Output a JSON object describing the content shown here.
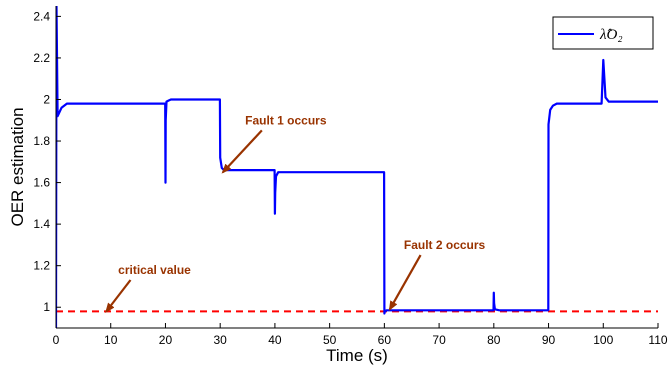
{
  "chart_data": {
    "type": "line",
    "xlabel": "Time (s)",
    "ylabel": "OER estimation",
    "xlim": [
      0,
      110
    ],
    "ylim": [
      0.9,
      2.45
    ],
    "xticks": [
      0,
      10,
      20,
      30,
      40,
      50,
      60,
      70,
      80,
      90,
      100,
      110
    ],
    "yticks": [
      1,
      1.2,
      1.4,
      1.6,
      1.8,
      2,
      2.2,
      2.4
    ],
    "xtick_labels": [
      "0",
      "10",
      "20",
      "30",
      "40",
      "50",
      "60",
      "70",
      "80",
      "90",
      "100",
      "110"
    ],
    "ytick_labels": [
      "1",
      "1.2",
      "1.4",
      "1.6",
      "1.8",
      "2",
      "2.2",
      "2.4"
    ],
    "grid": false,
    "legend_position": "top-right",
    "series": [
      {
        "name": "λ̂_O₂",
        "color": "#0000ff",
        "style": "solid",
        "x": [
          0,
          0.1,
          0.3,
          1,
          2,
          19.95,
          20.0,
          20.05,
          20.2,
          20.6,
          21,
          29.95,
          30.0,
          30.3,
          30.7,
          31,
          39.95,
          40.0,
          40.05,
          40.2,
          40.6,
          41,
          59.95,
          60.0,
          60.1,
          60.4,
          61,
          79.95,
          80.0,
          80.05,
          80.2,
          81,
          89.95,
          90.0,
          90.3,
          90.8,
          91.5,
          99.7,
          100.0,
          100.4,
          101,
          110
        ],
        "y": [
          0.88,
          2.45,
          1.92,
          1.96,
          1.98,
          1.98,
          1.6,
          1.9,
          1.99,
          1.995,
          2.0,
          2.0,
          1.72,
          1.67,
          1.66,
          1.66,
          1.66,
          1.45,
          1.55,
          1.63,
          1.65,
          1.65,
          1.65,
          0.97,
          0.98,
          0.985,
          0.985,
          0.985,
          1.07,
          1.02,
          0.99,
          0.985,
          0.985,
          1.88,
          1.95,
          1.97,
          1.98,
          1.98,
          2.19,
          2.01,
          1.99,
          1.99
        ]
      },
      {
        "name": "critical value",
        "color": "#ff0000",
        "style": "dashed",
        "x": [
          0,
          110
        ],
        "y": [
          0.98,
          0.98
        ]
      }
    ],
    "legend": {
      "entries": [
        "λ̂O₂"
      ]
    },
    "annotations": [
      {
        "text": "Fault 1 occurs",
        "arrow_to": [
          30.5,
          1.65
        ],
        "text_at": [
          42,
          1.88
        ],
        "color": "#993300"
      },
      {
        "text": "Fault 2 occurs",
        "arrow_to": [
          61,
          0.99
        ],
        "text_at": [
          71,
          1.28
        ],
        "color": "#993300"
      },
      {
        "text": "critical value",
        "arrow_to": [
          9.2,
          0.98
        ],
        "text_at": [
          18,
          1.16
        ],
        "color": "#993300"
      }
    ]
  }
}
